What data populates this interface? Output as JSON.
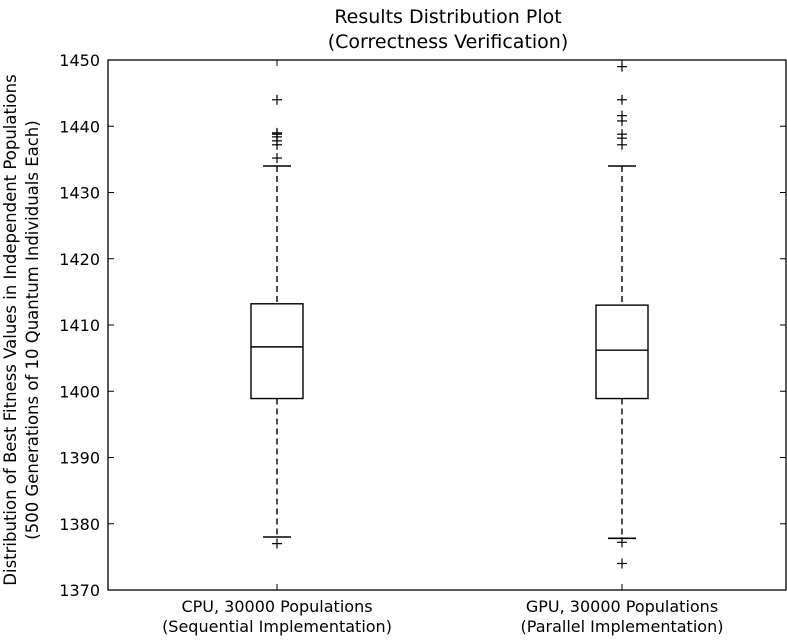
{
  "chart_data": {
    "type": "boxplot",
    "title": "Results Distribution Plot",
    "subtitle": "(Correctness Verification)",
    "ylabel": "Distribution of Best Fitness Values in Independent Populations",
    "ylabel2": "(500 Generations of 10 Quantum Individuals Each)",
    "ylim": [
      1370,
      1450
    ],
    "yticks": [
      1370,
      1380,
      1390,
      1400,
      1410,
      1420,
      1430,
      1440,
      1450
    ],
    "grid": false,
    "categories": [
      {
        "line1": "CPU, 30000 Populations",
        "line2": "(Sequential Implementation)"
      },
      {
        "line1": "GPU, 30000 Populations",
        "line2": "(Parallel Implementation)"
      }
    ],
    "boxes": [
      {
        "whisker_low": 1378.0,
        "q1": 1398.9,
        "median": 1406.7,
        "q3": 1413.2,
        "whisker_high": 1434.0,
        "outliers": [
          1377.0,
          1435.2,
          1437.2,
          1437.8,
          1438.4,
          1438.8,
          1439.0,
          1444.0
        ]
      },
      {
        "whisker_low": 1377.8,
        "q1": 1398.9,
        "median": 1406.2,
        "q3": 1413.0,
        "whisker_high": 1434.0,
        "outliers": [
          1374.0,
          1377.2,
          1437.2,
          1438.2,
          1438.8,
          1440.8,
          1441.6,
          1444.0,
          1449.0
        ]
      }
    ]
  }
}
